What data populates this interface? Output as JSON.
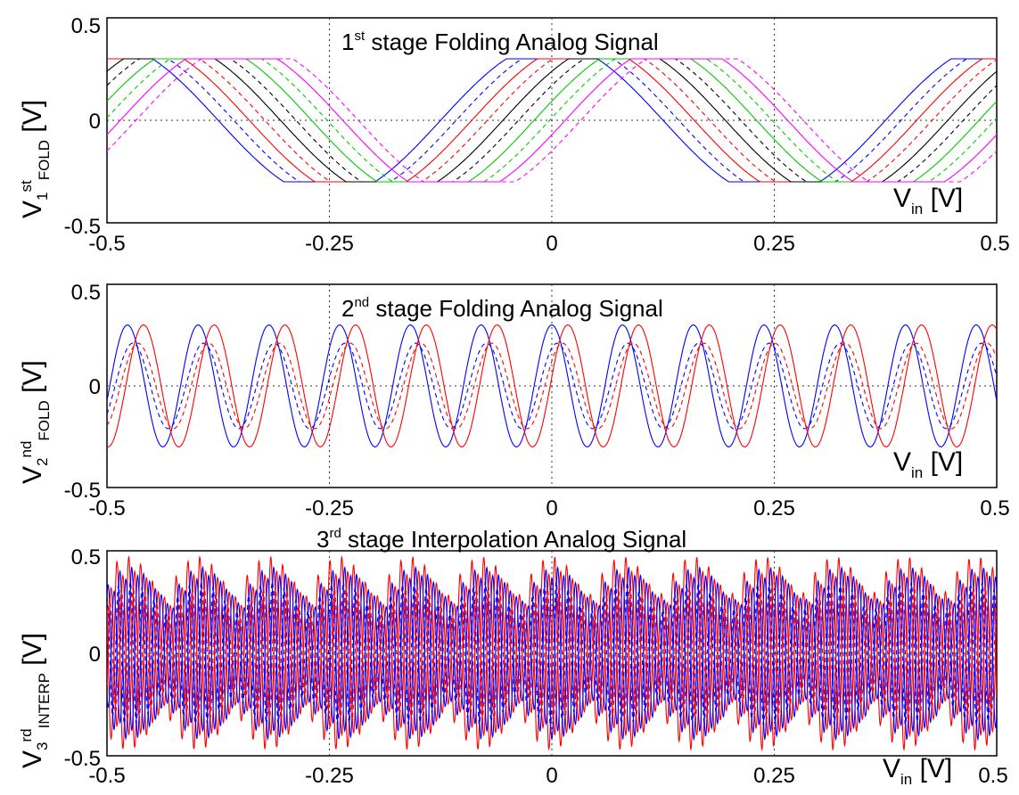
{
  "chart_data": [
    {
      "type": "line",
      "title_base": "1",
      "title_sup": "st",
      "title_rest": " stage Folding Analog Signal",
      "ylabel": {
        "base": "V",
        "sub1": "1",
        "sup": "st",
        "sub2": "FOLD",
        "unit": " [V]"
      },
      "xlabel": {
        "base": "V",
        "sub": "in",
        "unit": " [V]"
      },
      "xlim": [
        -0.5,
        0.5
      ],
      "ylim": [
        -0.5,
        0.5
      ],
      "xticks": [
        "-0.5",
        "-0.25",
        "0",
        "0.25",
        "0.5"
      ],
      "yticks": [
        "0.5",
        "0",
        "-0.5"
      ],
      "grid": "dotted at x = -0.25, 0, 0.25 and y = 0",
      "amplitude": 0.3,
      "period": 0.5,
      "series": [
        {
          "color": "#0000ff",
          "dash": "solid",
          "phase": 0.0
        },
        {
          "color": "#0000ff",
          "dash": "dashed",
          "phase": 0.0175
        },
        {
          "color": "#ff0000",
          "dash": "solid",
          "phase": 0.035
        },
        {
          "color": "#ff0000",
          "dash": "dashed",
          "phase": 0.0525
        },
        {
          "color": "#000000",
          "dash": "solid",
          "phase": 0.07
        },
        {
          "color": "#000000",
          "dash": "dashed",
          "phase": 0.0875
        },
        {
          "color": "#00cc00",
          "dash": "solid",
          "phase": 0.105
        },
        {
          "color": "#00cc00",
          "dash": "dashed",
          "phase": 0.1225
        },
        {
          "color": "#ff00ff",
          "dash": "solid",
          "phase": 0.14
        },
        {
          "color": "#ff00ff",
          "dash": "dashed",
          "phase": 0.1575
        }
      ]
    },
    {
      "type": "line",
      "title_base": "2",
      "title_sup": "nd",
      "title_rest": " stage Folding Analog Signal",
      "ylabel": {
        "base": "V",
        "sub1": "2",
        "sup": "nd",
        "sub2": "FOLD",
        "unit": " [V]"
      },
      "xlabel": {
        "base": "V",
        "sub": "in",
        "unit": " [V]"
      },
      "xlim": [
        -0.5,
        0.5
      ],
      "ylim": [
        -0.5,
        0.5
      ],
      "xticks": [
        "-0.5",
        "-0.25",
        "0",
        "0.25",
        "0.5"
      ],
      "yticks": [
        "0.5",
        "0",
        "-0.5"
      ],
      "grid": "dotted at x = -0.25, 0, 0.25 and y = 0",
      "amplitude": 0.3,
      "period": 0.0795,
      "series": [
        {
          "color": "#0000ff",
          "dash": "solid",
          "phase": 0.0,
          "amplitude": 0.3
        },
        {
          "color": "#0000ff",
          "dash": "dashed",
          "phase": 0.006,
          "amplitude": 0.21
        },
        {
          "color": "#ff0000",
          "dash": "dashed",
          "phase": 0.012,
          "amplitude": 0.21
        },
        {
          "color": "#ff0000",
          "dash": "solid",
          "phase": 0.018,
          "amplitude": 0.3
        }
      ]
    },
    {
      "type": "line",
      "title_base": "3",
      "title_sup": "rd",
      "title_rest": " stage Interpolation Analog Signal",
      "ylabel": {
        "base": "V",
        "sub1": "3",
        "sup": "rd",
        "sub2": "INTERP",
        "unit": " [V]"
      },
      "xlabel": {
        "base": "V",
        "sub": "in",
        "unit": " [V]"
      },
      "xlim": [
        -0.5,
        0.5
      ],
      "ylim": [
        -0.5,
        0.5
      ],
      "xticks": [
        "-0.5",
        "-0.25",
        "0",
        "0.25",
        "0.5"
      ],
      "yticks": [
        "0.5",
        "0",
        "-0.5"
      ],
      "grid": "dotted at x = -0.25, 0, 0.25 and y = 0",
      "envelope_period": 0.0795,
      "carrier_period": 0.0133,
      "series": [
        {
          "color": "#ff0000",
          "dash": "solid",
          "phase": 0.0,
          "amplitude": 0.47
        },
        {
          "color": "#0000ff",
          "dash": "solid",
          "phase": 0.0033,
          "amplitude": 0.42
        },
        {
          "color": "#ff0000",
          "dash": "solid",
          "phase": 0.0066,
          "amplitude": 0.4
        },
        {
          "color": "#0000ff",
          "dash": "solid",
          "phase": 0.01,
          "amplitude": 0.38
        },
        {
          "color": "#0000ff",
          "dash": "dashed",
          "phase": 0.0017,
          "amplitude": 0.35
        },
        {
          "color": "#ff0000",
          "dash": "dashed",
          "phase": 0.005,
          "amplitude": 0.33
        }
      ]
    }
  ]
}
